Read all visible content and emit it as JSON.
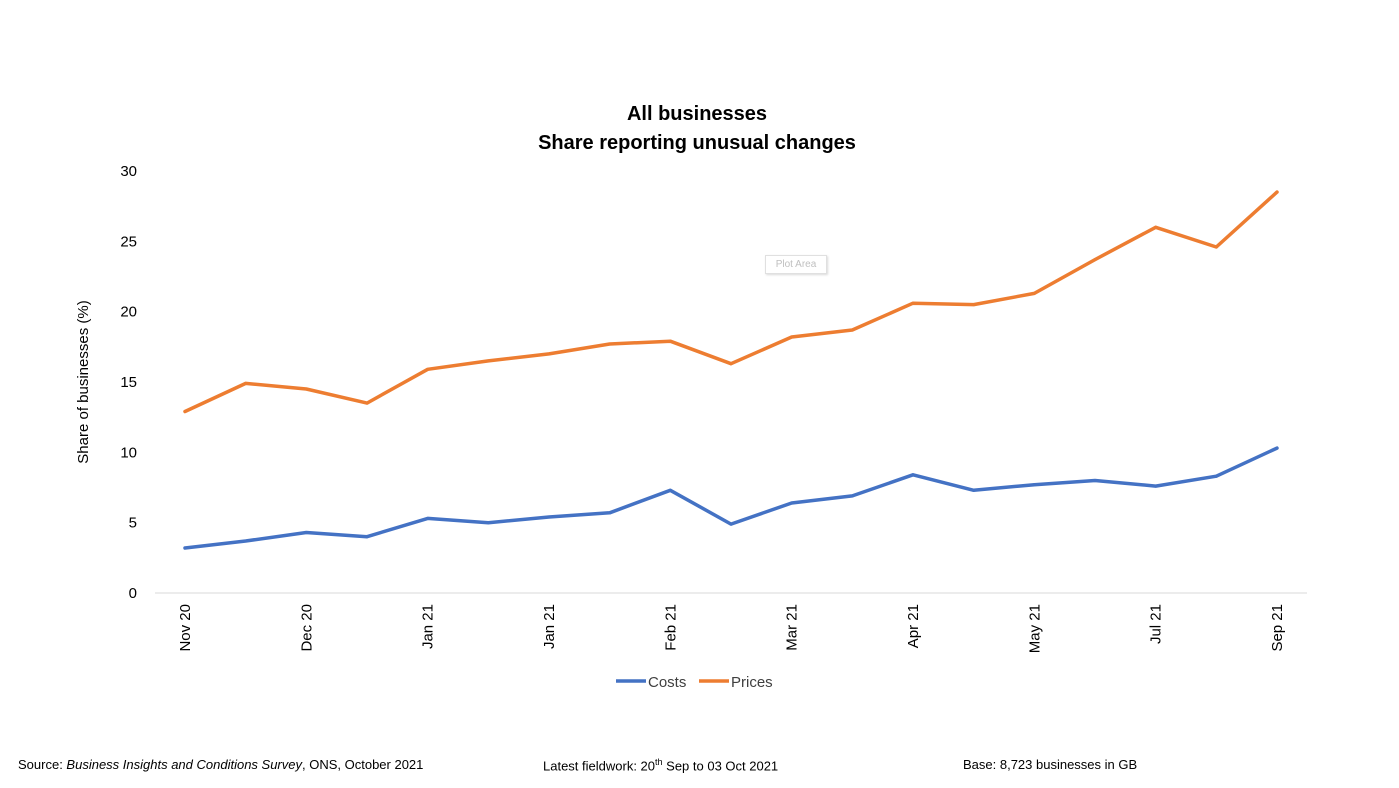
{
  "chart_data": {
    "type": "line",
    "title_lines": [
      "All businesses",
      "Share reporting unusual changes"
    ],
    "ylabel": "Share of businesses (%)",
    "xlabel": "",
    "ylim": [
      0,
      30
    ],
    "yticks": [
      0,
      5,
      10,
      15,
      20,
      25,
      30
    ],
    "grid": false,
    "legend_position": "bottom",
    "x_tick_labels": [
      "Nov 20",
      "Dec 20",
      "Jan 21",
      "Jan 21",
      "Feb 21",
      "Mar 21",
      "Apr 21",
      "May 21",
      "Jul 21",
      "Sep 21"
    ],
    "series": [
      {
        "name": "Costs",
        "color": "#4472C4",
        "values": [
          3.2,
          3.7,
          4.3,
          4.0,
          5.3,
          5.0,
          5.4,
          5.7,
          7.3,
          4.9,
          6.4,
          6.9,
          8.4,
          7.3,
          7.7,
          8.0,
          7.6,
          8.3,
          10.3
        ]
      },
      {
        "name": "Prices",
        "color": "#ED7D31",
        "values": [
          12.9,
          14.9,
          14.5,
          13.5,
          15.9,
          16.5,
          17.0,
          17.7,
          17.9,
          16.3,
          18.2,
          18.7,
          20.6,
          20.5,
          21.3,
          23.7,
          26.0,
          24.6,
          28.5
        ]
      }
    ]
  },
  "plot_area_tag": "Plot Area",
  "footer": {
    "source_prefix": "Source: ",
    "source_italic": "Business Insights and Conditions Survey",
    "source_suffix": ", ONS, October 2021",
    "fieldwork_prefix": "Latest fieldwork: 20",
    "fieldwork_sup": "th",
    "fieldwork_suffix": " Sep to 03 Oct 2021",
    "base": "Base: 8,723 businesses in GB"
  }
}
